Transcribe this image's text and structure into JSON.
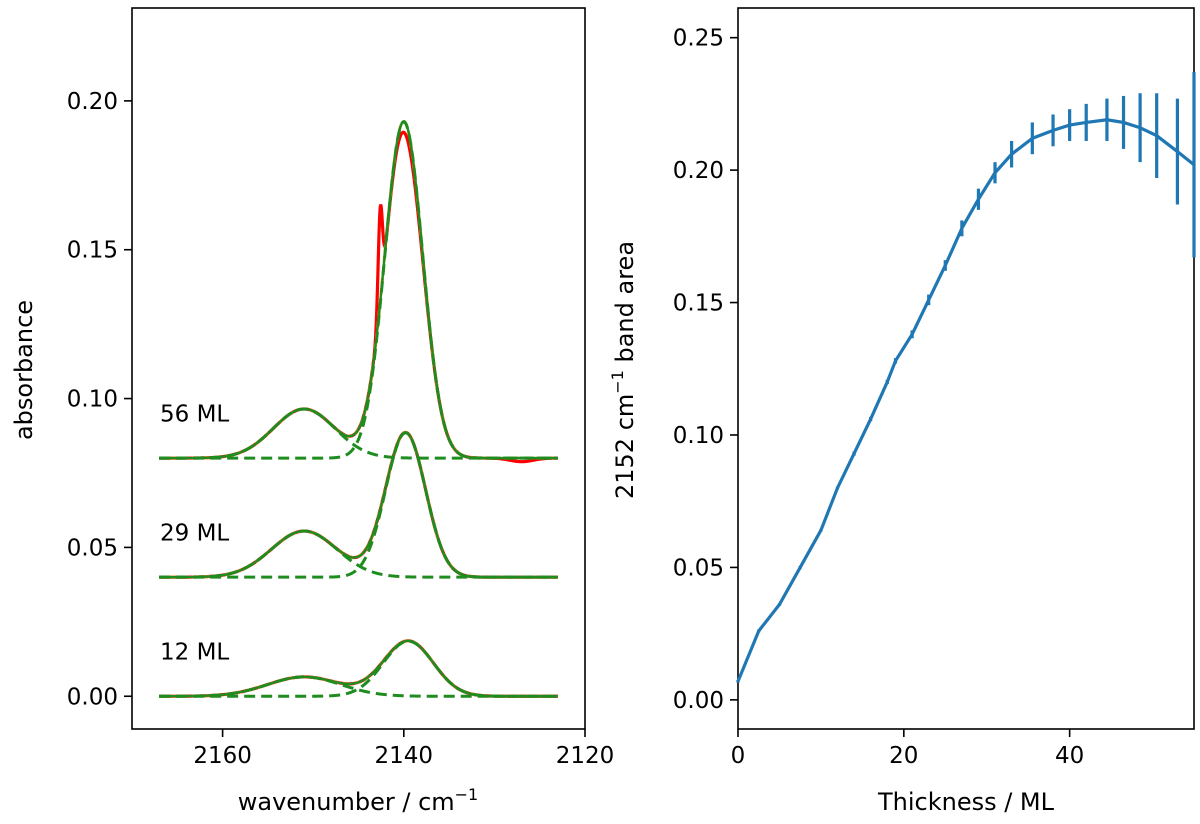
{
  "chart_data": [
    {
      "type": "line",
      "panel": "left",
      "xlabel": "wavenumber / cm",
      "xlabel_sup": "−1",
      "ylabel": "absorbance",
      "xlim": [
        2170,
        2120
      ],
      "ylim": [
        -0.011,
        0.2312
      ],
      "x_ticks": [
        2160,
        2140,
        2120
      ],
      "y_ticks": [
        0.0,
        0.05,
        0.1,
        0.15,
        0.2
      ],
      "x_tick_labels": [
        "2160",
        "2140",
        "2120"
      ],
      "y_tick_labels": [
        "0.00",
        "0.05",
        "0.10",
        "0.15",
        "0.20"
      ],
      "colors": {
        "observed": "#ff0000",
        "fit": "#ff9933",
        "component": "#1f8c1f"
      },
      "annotations": [
        {
          "text": "56 ML",
          "x": 2167,
          "y": 0.095
        },
        {
          "text": "29 ML",
          "x": 2167,
          "y": 0.055
        },
        {
          "text": "12 ML",
          "x": 2167,
          "y": 0.015
        }
      ],
      "spectra": [
        {
          "label": "12 ML",
          "offset": 0.0,
          "components": [
            {
              "center": 2151,
              "amplitude": 0.0065,
              "fwhm": 9.5
            },
            {
              "center": 2139.5,
              "amplitude": 0.0185,
              "fwhm": 6.5
            }
          ]
        },
        {
          "label": "29 ML",
          "offset": 0.04,
          "components": [
            {
              "center": 2151,
              "amplitude": 0.0155,
              "fwhm": 8.5
            },
            {
              "center": 2139.8,
              "amplitude": 0.0485,
              "fwhm": 5.2
            }
          ]
        },
        {
          "label": "56 ML",
          "offset": 0.08,
          "components": [
            {
              "center": 2151,
              "amplitude": 0.0165,
              "fwhm": 8.0
            },
            {
              "center": 2140,
              "amplitude": 0.113,
              "fwhm": 4.9
            }
          ],
          "observed_extra": {
            "center": 2142.6,
            "amplitude": 0.032,
            "fwhm": 0.55,
            "trough": {
              "center": 2127,
              "amplitude": -0.0012,
              "fwhm": 3
            }
          }
        }
      ]
    },
    {
      "type": "line",
      "panel": "right",
      "xlabel": "Thickness / ML",
      "ylabel_pre": "2152 cm",
      "ylabel_sup": "−1",
      "ylabel_post": " band area",
      "xlim": [
        0,
        55
      ],
      "ylim": [
        -0.011,
        0.2612
      ],
      "x_ticks": [
        0,
        20,
        40
      ],
      "y_ticks": [
        0.0,
        0.05,
        0.1,
        0.15,
        0.2,
        0.25
      ],
      "x_tick_labels": [
        "0",
        "20",
        "40"
      ],
      "y_tick_labels": [
        "0.00",
        "0.05",
        "0.10",
        "0.15",
        "0.20",
        "0.25"
      ],
      "color": "#1f77b4",
      "x": [
        0,
        2.5,
        5,
        7.5,
        10,
        12,
        14,
        16,
        18,
        19,
        21,
        23,
        25,
        27,
        29,
        31,
        33,
        35.5,
        38,
        40,
        42,
        44.5,
        46.5,
        48.5,
        50.5,
        53,
        55
      ],
      "y": [
        0.007,
        0.026,
        0.036,
        0.05,
        0.064,
        0.08,
        0.093,
        0.106,
        0.12,
        0.128,
        0.138,
        0.151,
        0.164,
        0.178,
        0.189,
        0.199,
        0.206,
        0.212,
        0.215,
        0.217,
        0.218,
        0.219,
        0.218,
        0.216,
        0.213,
        0.207,
        0.202
      ],
      "error": [
        0.0005,
        0.0005,
        0.0005,
        0.0005,
        0.0005,
        0.0005,
        0.0008,
        0.0008,
        0.0008,
        0.001,
        0.0015,
        0.002,
        0.002,
        0.003,
        0.004,
        0.004,
        0.005,
        0.006,
        0.006,
        0.006,
        0.007,
        0.008,
        0.01,
        0.013,
        0.016,
        0.02,
        0.035
      ]
    }
  ]
}
